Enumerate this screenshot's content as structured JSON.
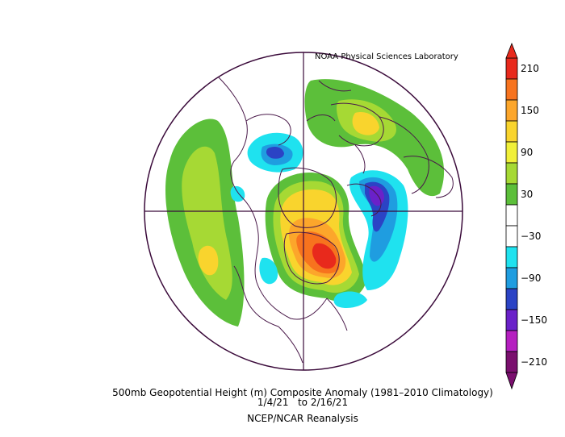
{
  "header": {
    "credit": "NOAA Physical Sciences Laboratory"
  },
  "caption": {
    "line1": "500mb Geopotential Height (m) Composite Anomaly (1981–2010 Climatology)",
    "line2": "1/4/21   to 2/16/21",
    "line3": "NCEP/NCAR Reanalysis"
  },
  "colorbar": {
    "labels": [
      "210",
      "150",
      "90",
      "30",
      "−30",
      "−90",
      "−150",
      "−210"
    ],
    "levels": [
      {
        "value": "210",
        "color": "#e8291c"
      },
      {
        "value": "180",
        "color": "#f7731e"
      },
      {
        "value": "150",
        "color": "#fca62b"
      },
      {
        "value": "120",
        "color": "#f9d42d"
      },
      {
        "value": "90",
        "color": "#f1f039"
      },
      {
        "value": "60",
        "color": "#a6d934"
      },
      {
        "value": "30",
        "color": "#5cbf3a"
      },
      {
        "value": "0",
        "color": "#ffffff"
      },
      {
        "value": "-30",
        "color": "#ffffff"
      },
      {
        "value": "-60",
        "color": "#1fe2ef"
      },
      {
        "value": "-90",
        "color": "#1f9de0"
      },
      {
        "value": "-120",
        "color": "#2b43c5"
      },
      {
        "value": "-150",
        "color": "#6a21c9"
      },
      {
        "value": "-180",
        "color": "#b51fc0"
      },
      {
        "value": "-210",
        "color": "#7a0f6e"
      }
    ]
  },
  "colors": {
    "coast": "#4a1a4a",
    "frame": "#3a0a3a"
  }
}
